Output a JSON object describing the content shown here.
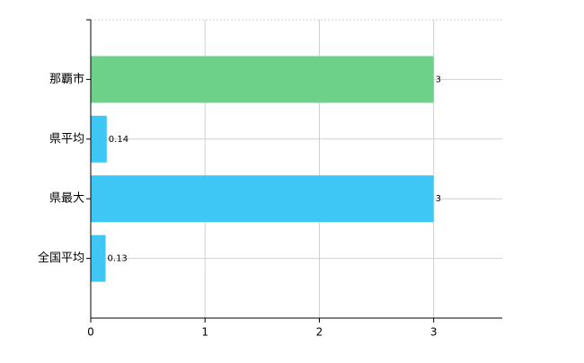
{
  "chart_data": {
    "type": "barh",
    "categories": [
      "那覇市",
      "県平均",
      "県最大",
      "全国平均"
    ],
    "values": [
      3,
      0.14,
      3,
      0.13
    ],
    "colors": [
      "#6dd18a",
      "#3ec7f5",
      "#3ec7f5",
      "#3ec7f5"
    ],
    "xlim": [
      0,
      3.6
    ],
    "xticks": [
      0,
      1,
      2,
      3
    ],
    "grid": true
  }
}
